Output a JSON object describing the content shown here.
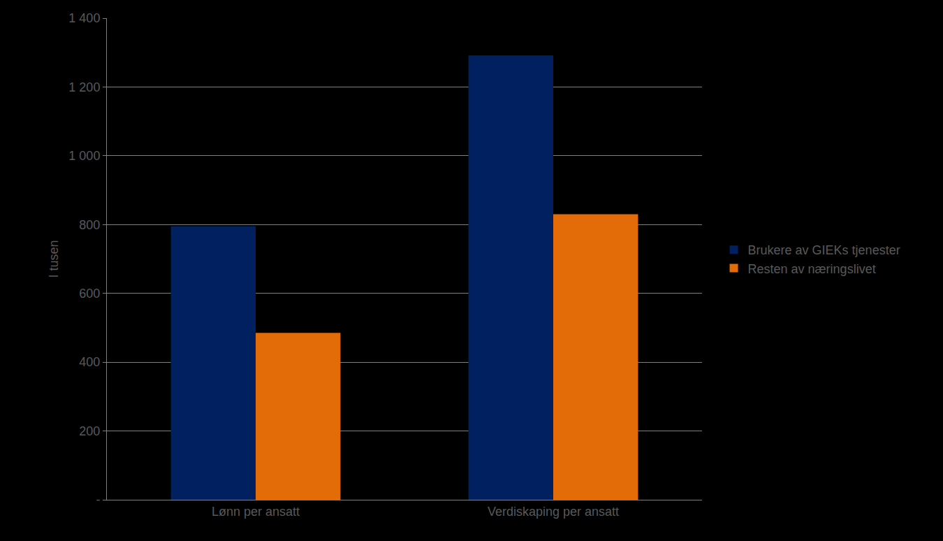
{
  "chart_data": {
    "type": "bar",
    "y_label": "I tusen",
    "categories": [
      "Lønn per ansatt",
      "Verdiskaping per ansatt"
    ],
    "series": [
      {
        "name": "Brukere av GIEKs tjenester",
        "color": "#002060",
        "values": [
          795,
          1292
        ]
      },
      {
        "name": "Resten av næringslivet",
        "color": "#e36c09",
        "values": [
          485,
          830
        ]
      }
    ],
    "ylim": [
      0,
      1400
    ],
    "yticks": [
      {
        "value": 0,
        "label": "-"
      },
      200,
      400,
      600,
      800,
      {
        "value": 1000,
        "label": "1 000"
      },
      {
        "value": 1200,
        "label": "1 200"
      },
      {
        "value": 1400,
        "label": "1 400"
      }
    ],
    "grid": true,
    "legend": "right"
  }
}
